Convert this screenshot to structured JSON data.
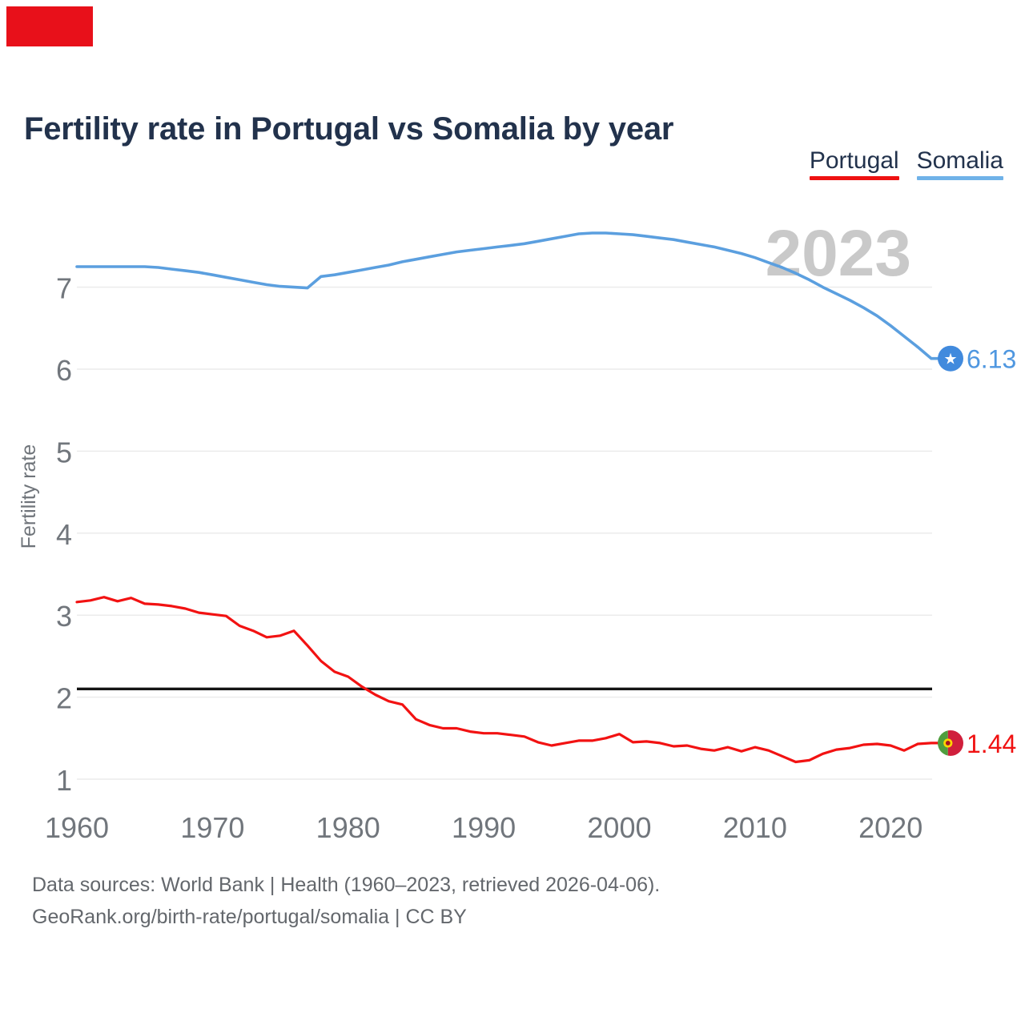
{
  "annotation_box": {
    "color": "#e8101a"
  },
  "title": "Fertility rate in Portugal vs Somalia by year",
  "legend": {
    "portugal": {
      "label": "Portugal",
      "color": "#ee1111"
    },
    "somalia": {
      "label": "Somalia",
      "color": "#6fb2e8"
    }
  },
  "footer": {
    "line1": "Data sources: World Bank | Health (1960–2023, retrieved 2026-04-06).",
    "line2": "GeoRank.org/birth-rate/portugal/somalia | CC BY"
  },
  "chart_data": {
    "type": "line",
    "title": "Fertility rate in Portugal vs Somalia by year",
    "xlabel": "",
    "ylabel": "Fertility rate",
    "xlim": [
      1960,
      2023
    ],
    "ylim": [
      1,
      7.8
    ],
    "x_ticks": [
      1960,
      1970,
      1980,
      1990,
      2000,
      2010,
      2020
    ],
    "y_ticks": [
      1,
      2,
      3,
      4,
      5,
      6,
      7
    ],
    "grid": "horizontal-only",
    "gridline_color": "#ebebeb",
    "legend_position": "top-right",
    "watermark": "2023",
    "axis_text_color": "#71767c",
    "reference_line": {
      "value": 2.1,
      "color": "#141414"
    },
    "x": [
      1960,
      1961,
      1962,
      1963,
      1964,
      1965,
      1966,
      1967,
      1968,
      1969,
      1970,
      1971,
      1972,
      1973,
      1974,
      1975,
      1976,
      1977,
      1978,
      1979,
      1980,
      1981,
      1982,
      1983,
      1984,
      1985,
      1986,
      1987,
      1988,
      1989,
      1990,
      1991,
      1992,
      1993,
      1994,
      1995,
      1996,
      1997,
      1998,
      1999,
      2000,
      2001,
      2002,
      2003,
      2004,
      2005,
      2006,
      2007,
      2008,
      2009,
      2010,
      2011,
      2012,
      2013,
      2014,
      2015,
      2016,
      2017,
      2018,
      2019,
      2020,
      2021,
      2022,
      2023
    ],
    "series": [
      {
        "name": "Portugal",
        "line_color": "#f21212",
        "end_label": "1.44",
        "end_value": 1.44,
        "label_color": "#f01212",
        "flag_icon": "portugal-flag-icon",
        "flag_colors": {
          "green": "#4f9e3e",
          "red": "#d01f3c",
          "emblem_yellow": "#ffd600",
          "emblem_dark": "#a51520"
        },
        "values": [
          3.16,
          3.18,
          3.22,
          3.17,
          3.21,
          3.14,
          3.13,
          3.11,
          3.08,
          3.03,
          3.01,
          2.99,
          2.87,
          2.81,
          2.73,
          2.75,
          2.81,
          2.63,
          2.44,
          2.31,
          2.25,
          2.13,
          2.03,
          1.95,
          1.91,
          1.73,
          1.66,
          1.62,
          1.62,
          1.58,
          1.56,
          1.56,
          1.54,
          1.52,
          1.45,
          1.41,
          1.44,
          1.47,
          1.47,
          1.5,
          1.55,
          1.45,
          1.46,
          1.44,
          1.4,
          1.41,
          1.37,
          1.35,
          1.39,
          1.34,
          1.39,
          1.35,
          1.28,
          1.21,
          1.23,
          1.31,
          1.36,
          1.38,
          1.42,
          1.43,
          1.41,
          1.35,
          1.43,
          1.44
        ]
      },
      {
        "name": "Somalia",
        "line_color": "#5b9fdf",
        "end_label": "6.13",
        "end_value": 6.13,
        "label_color": "#4f97e0",
        "flag_icon": "somalia-flag-icon",
        "flag_colors": {
          "field": "#418add",
          "star": "#ffffff"
        },
        "values": [
          7.25,
          7.25,
          7.25,
          7.25,
          7.25,
          7.25,
          7.24,
          7.22,
          7.2,
          7.18,
          7.15,
          7.12,
          7.09,
          7.06,
          7.03,
          7.01,
          7.0,
          6.99,
          7.13,
          7.15,
          7.18,
          7.21,
          7.24,
          7.27,
          7.31,
          7.34,
          7.37,
          7.4,
          7.43,
          7.45,
          7.47,
          7.49,
          7.51,
          7.53,
          7.56,
          7.59,
          7.62,
          7.65,
          7.66,
          7.66,
          7.65,
          7.64,
          7.62,
          7.6,
          7.58,
          7.55,
          7.52,
          7.49,
          7.45,
          7.41,
          7.36,
          7.3,
          7.24,
          7.17,
          7.09,
          7.0,
          6.92,
          6.84,
          6.75,
          6.65,
          6.53,
          6.4,
          6.27,
          6.13
        ]
      }
    ]
  }
}
